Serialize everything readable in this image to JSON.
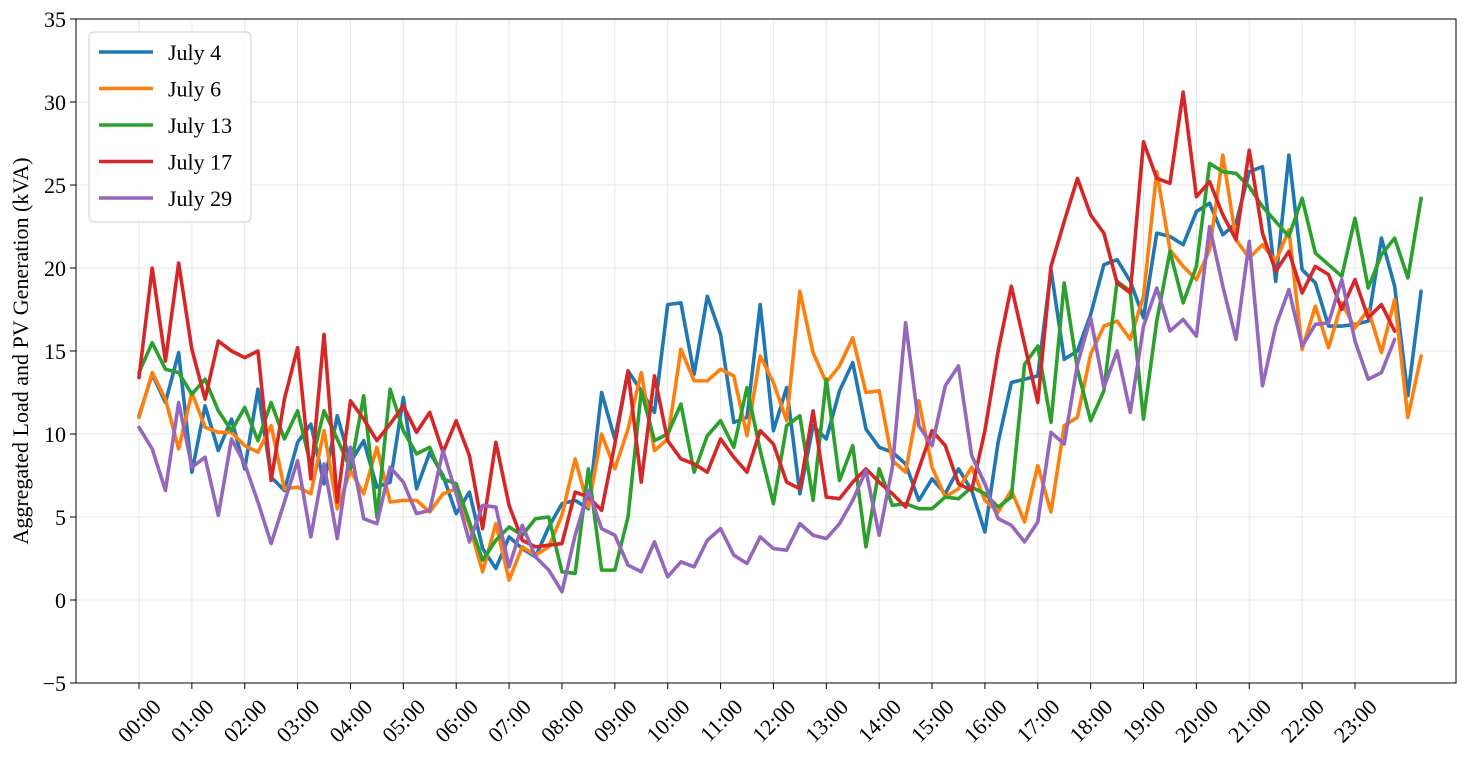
{
  "chart_data": {
    "type": "line",
    "title": "",
    "xlabel": "",
    "ylabel": "Aggregated Load and PV Generation (kVA)",
    "ylim": [
      -5,
      35
    ],
    "yticks": [
      -5,
      0,
      5,
      10,
      15,
      20,
      25,
      30,
      35
    ],
    "x_tick_labels": [
      "00:00",
      "01:00",
      "02:00",
      "03:00",
      "04:00",
      "05:00",
      "06:00",
      "07:00",
      "08:00",
      "09:00",
      "10:00",
      "11:00",
      "12:00",
      "13:00",
      "14:00",
      "15:00",
      "16:00",
      "17:00",
      "18:00",
      "19:00",
      "20:00",
      "21:00",
      "22:00",
      "23:00"
    ],
    "points_per_hour": 4,
    "grid": true,
    "legend_position": "top-left",
    "series": [
      {
        "name": "July 4",
        "color": "#1f77b4",
        "values": [
          11.1,
          13.6,
          11.9,
          14.9,
          7.7,
          11.7,
          9.0,
          10.9,
          7.9,
          12.7,
          7.4,
          6.6,
          9.5,
          10.6,
          7.0,
          11.1,
          8.3,
          9.6,
          6.8,
          7.1,
          12.2,
          6.7,
          8.9,
          7.5,
          5.2,
          6.5,
          3.1,
          1.9,
          3.8,
          3.1,
          2.6,
          4.4,
          5.8,
          6.0,
          5.5,
          12.5,
          9.7,
          13.8,
          12.6,
          11.3,
          17.8,
          17.9,
          13.6,
          18.3,
          16.0,
          10.7,
          11.0,
          17.8,
          10.2,
          12.8,
          6.4,
          10.5,
          9.7,
          12.6,
          14.3,
          10.3,
          9.2,
          8.9,
          8.2,
          6.0,
          7.3,
          6.4,
          7.9,
          6.6,
          4.1,
          9.5,
          13.1,
          13.3,
          13.5,
          19.9,
          14.5,
          15.0,
          17.2,
          20.2,
          20.5,
          19.2,
          17.0,
          22.1,
          21.9,
          21.4,
          23.4,
          23.9,
          22.0,
          22.7,
          25.8,
          26.1,
          19.2,
          26.8,
          19.9,
          19.1,
          16.5,
          16.5,
          16.6,
          16.8,
          21.8,
          18.9,
          12.3,
          18.6
        ]
      },
      {
        "name": "July 6",
        "color": "#ff7f0e",
        "values": [
          11.0,
          13.7,
          12.1,
          9.1,
          12.5,
          10.4,
          10.1,
          10.1,
          9.3,
          8.9,
          10.5,
          6.7,
          6.8,
          6.4,
          10.2,
          5.5,
          7.8,
          6.4,
          9.2,
          5.9,
          6.0,
          6.0,
          5.3,
          6.4,
          6.7,
          4.5,
          1.7,
          4.6,
          1.2,
          3.2,
          2.7,
          3.2,
          5.1,
          8.5,
          5.6,
          10.0,
          7.9,
          10.3,
          13.7,
          9.0,
          9.7,
          15.1,
          13.2,
          13.2,
          13.9,
          13.5,
          9.9,
          14.7,
          13.1,
          10.8,
          18.6,
          14.9,
          13.1,
          14.1,
          15.8,
          12.5,
          12.6,
          8.4,
          7.7,
          12.0,
          8.0,
          6.2,
          6.7,
          8.0,
          6.0,
          5.3,
          6.6,
          4.7,
          8.1,
          5.3,
          10.5,
          11.0,
          14.8,
          16.5,
          16.8,
          15.7,
          18.3,
          25.8,
          21.1,
          20.1,
          19.3,
          21.1,
          26.8,
          21.7,
          20.6,
          21.4,
          20.4,
          22.3,
          15.1,
          17.7,
          15.2,
          17.9,
          16.4,
          17.5,
          14.9,
          18.1,
          11.0,
          14.7
        ]
      },
      {
        "name": "July 13",
        "color": "#2ca02c",
        "values": [
          13.7,
          15.5,
          13.9,
          13.7,
          12.4,
          13.3,
          11.4,
          10.2,
          11.6,
          9.6,
          11.9,
          9.7,
          11.4,
          8.1,
          11.4,
          9.7,
          7.9,
          12.3,
          5.0,
          12.7,
          10.2,
          8.8,
          9.2,
          7.3,
          7.0,
          4.7,
          2.4,
          3.6,
          4.4,
          3.9,
          4.9,
          5.0,
          1.7,
          1.6,
          7.9,
          1.8,
          1.8,
          5.0,
          12.6,
          9.6,
          10.0,
          11.8,
          7.7,
          9.9,
          10.8,
          9.2,
          12.8,
          9.0,
          5.8,
          10.5,
          11.1,
          6.0,
          13.3,
          7.2,
          9.3,
          3.2,
          7.9,
          5.7,
          5.8,
          5.5,
          5.5,
          6.2,
          6.1,
          6.8,
          6.4,
          5.6,
          6.2,
          14.2,
          15.3,
          10.7,
          19.1,
          13.9,
          10.8,
          12.6,
          19.2,
          18.6,
          10.9,
          16.8,
          21.0,
          17.9,
          20.1,
          26.3,
          25.8,
          25.7,
          24.9,
          23.7,
          22.8,
          21.9,
          24.2,
          20.9,
          20.2,
          19.5,
          23.0,
          18.8,
          20.8,
          21.8,
          19.4,
          24.2
        ]
      },
      {
        "name": "July 17",
        "color": "#d62728",
        "values": [
          13.4,
          20.0,
          14.4,
          20.3,
          15.1,
          12.1,
          15.6,
          15.0,
          14.6,
          15.0,
          7.2,
          12.1,
          15.2,
          7.3,
          16.0,
          5.9,
          12.0,
          10.9,
          9.6,
          10.6,
          11.7,
          10.1,
          11.3,
          8.9,
          10.8,
          8.7,
          4.3,
          9.5,
          5.7,
          3.6,
          3.2,
          3.3,
          3.4,
          6.5,
          6.2,
          5.4,
          9.4,
          13.8,
          7.1,
          13.5,
          9.6,
          8.5,
          8.2,
          7.7,
          9.7,
          8.6,
          7.7,
          10.2,
          9.4,
          7.1,
          6.7,
          11.4,
          6.2,
          6.1,
          7.1,
          7.9,
          7.1,
          6.4,
          5.6,
          7.9,
          10.2,
          9.3,
          7.0,
          6.6,
          10.2,
          15.0,
          18.9,
          15.4,
          11.9,
          20.1,
          22.8,
          25.4,
          23.2,
          22.1,
          19.1,
          18.5,
          27.6,
          25.4,
          25.1,
          30.6,
          24.3,
          25.2,
          23.2,
          21.7,
          27.1,
          22.1,
          19.8,
          21.0,
          18.5,
          20.1,
          19.6,
          17.5,
          19.3,
          17.0,
          17.8,
          16.2
        ]
      },
      {
        "name": "July 29",
        "color": "#9467bd",
        "values": [
          10.4,
          9.1,
          6.6,
          11.9,
          8.0,
          8.6,
          5.1,
          9.7,
          8.2,
          5.9,
          3.4,
          5.9,
          8.4,
          3.8,
          8.2,
          3.7,
          9.2,
          4.9,
          4.6,
          8.0,
          7.1,
          5.2,
          5.4,
          9.0,
          6.4,
          3.5,
          5.7,
          5.6,
          2.0,
          4.5,
          2.6,
          1.8,
          0.5,
          3.9,
          6.6,
          4.3,
          3.9,
          2.1,
          1.7,
          3.5,
          1.4,
          2.3,
          2.0,
          3.6,
          4.3,
          2.7,
          2.2,
          3.8,
          3.1,
          3.0,
          4.6,
          3.9,
          3.7,
          4.6,
          6.0,
          7.8,
          3.9,
          8.0,
          16.7,
          10.5,
          9.3,
          12.9,
          14.1,
          8.7,
          7.0,
          4.9,
          4.5,
          3.5,
          4.7,
          10.1,
          9.4,
          14.2,
          17.0,
          12.8,
          15.0,
          11.3,
          16.5,
          18.8,
          16.2,
          16.9,
          15.9,
          22.5,
          18.9,
          15.7,
          21.6,
          12.9,
          16.5,
          18.7,
          15.3,
          16.6,
          16.7,
          19.3,
          15.6,
          13.3,
          13.7,
          15.7
        ]
      }
    ]
  }
}
